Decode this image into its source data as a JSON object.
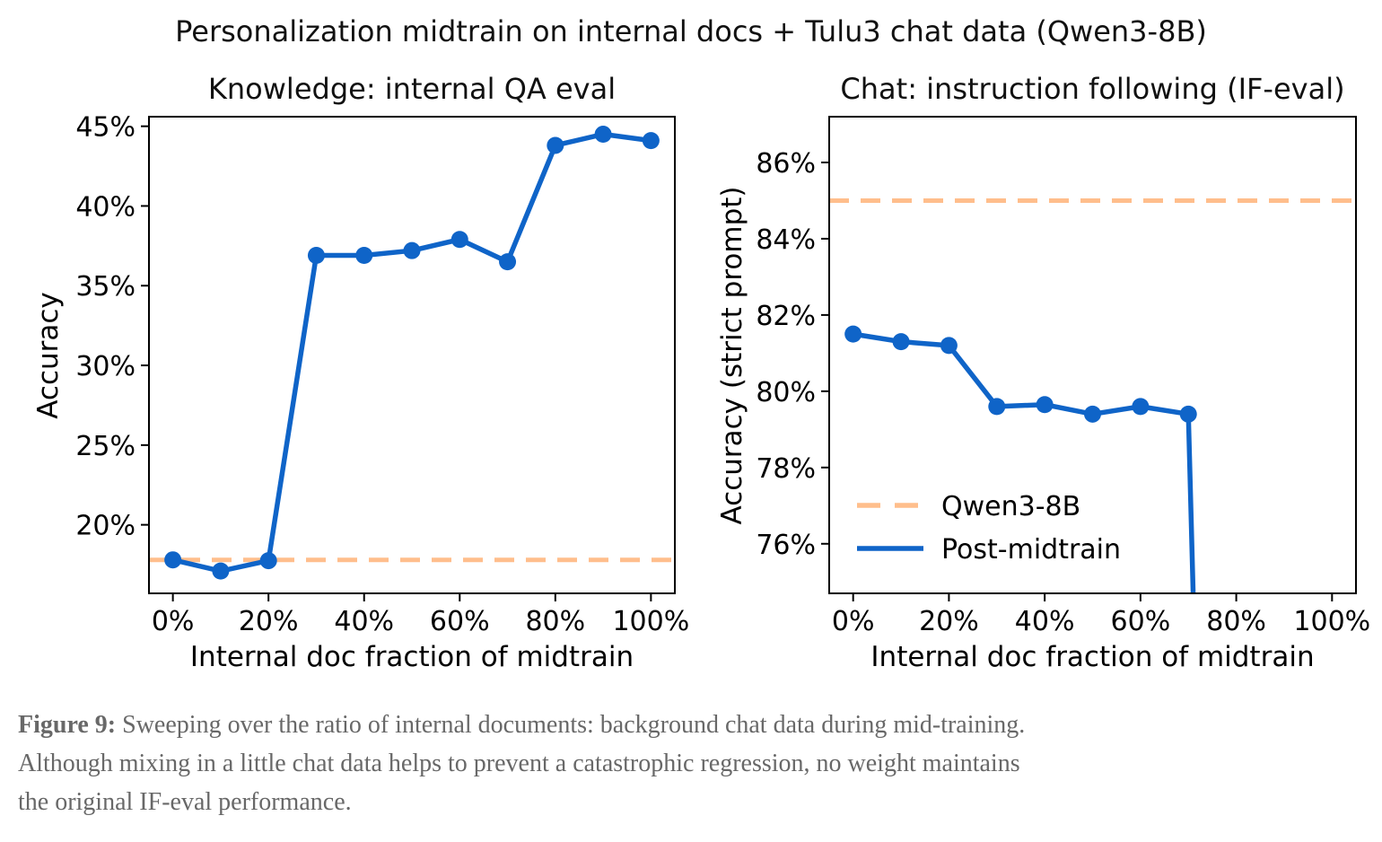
{
  "figure": {
    "suptitle": "Personalization midtrain on internal docs + Tulu3 chat data (Qwen3-8B)",
    "caption": {
      "label": "Figure 9:",
      "line1": "Sweeping over the ratio of internal documents: background chat data during mid-training.",
      "line2": "Although mixing in a little chat data helps to prevent a catastrophic regression, no weight maintains",
      "line3": "the original IF-eval performance."
    }
  },
  "colors": {
    "post_midtrain": "#0f64c8",
    "baseline": "#ffbe8c",
    "axis": "#000000",
    "caption_text": "#686868"
  },
  "chart_data": [
    {
      "type": "line",
      "title": "Knowledge: internal QA eval",
      "xlabel": "Internal doc fraction of midtrain",
      "ylabel": "Accuracy",
      "x": [
        0,
        10,
        20,
        30,
        40,
        50,
        60,
        70,
        80,
        90,
        100
      ],
      "series": [
        {
          "name": "Post-midtrain",
          "values": [
            17.8,
            17.1,
            17.75,
            36.9,
            36.9,
            37.2,
            37.9,
            36.5,
            43.8,
            44.5,
            44.1
          ]
        }
      ],
      "baseline": {
        "name": "Qwen3-8B",
        "value": 17.8
      },
      "xlim": [
        -5,
        105
      ],
      "ylim": [
        15.7,
        45.6
      ],
      "xticks": [
        {
          "v": 0,
          "label": "0%"
        },
        {
          "v": 20,
          "label": "20%"
        },
        {
          "v": 40,
          "label": "40%"
        },
        {
          "v": 60,
          "label": "60%"
        },
        {
          "v": 80,
          "label": "80%"
        },
        {
          "v": 100,
          "label": "100%"
        }
      ],
      "yticks": [
        {
          "v": 20,
          "label": "20%"
        },
        {
          "v": 25,
          "label": "25%"
        },
        {
          "v": 30,
          "label": "30%"
        },
        {
          "v": 35,
          "label": "35%"
        },
        {
          "v": 40,
          "label": "40%"
        },
        {
          "v": 45,
          "label": "45%"
        }
      ],
      "grid": false
    },
    {
      "type": "line",
      "title": "Chat: instruction following (IF-eval)",
      "xlabel": "Internal doc fraction of midtrain",
      "ylabel": "Accuracy (strict prompt)",
      "x": [
        0,
        10,
        20,
        30,
        40,
        50,
        60,
        70,
        80,
        90,
        100
      ],
      "series": [
        {
          "name": "Post-midtrain",
          "values": [
            81.5,
            81.3,
            81.2,
            79.6,
            79.65,
            79.4,
            79.6,
            79.4,
            null,
            null,
            null
          ],
          "offscale_after_index": 7,
          "offscale_note": "line plunges below the visible axis range after the 70% point"
        }
      ],
      "baseline": {
        "name": "Qwen3-8B",
        "value": 85.0
      },
      "xlim": [
        -5,
        105
      ],
      "ylim": [
        74.7,
        87.2
      ],
      "xticks": [
        {
          "v": 0,
          "label": "0%"
        },
        {
          "v": 20,
          "label": "20%"
        },
        {
          "v": 40,
          "label": "40%"
        },
        {
          "v": 60,
          "label": "60%"
        },
        {
          "v": 80,
          "label": "80%"
        },
        {
          "v": 100,
          "label": "100%"
        }
      ],
      "yticks": [
        {
          "v": 76,
          "label": "76%"
        },
        {
          "v": 78,
          "label": "78%"
        },
        {
          "v": 80,
          "label": "80%"
        },
        {
          "v": 82,
          "label": "82%"
        },
        {
          "v": 84,
          "label": "84%"
        },
        {
          "v": 86,
          "label": "86%"
        }
      ],
      "grid": false,
      "legend": {
        "position": "lower left",
        "entries": [
          {
            "label": "Qwen3-8B",
            "style": "dashed",
            "color_key": "baseline"
          },
          {
            "label": "Post-midtrain",
            "style": "solid",
            "color_key": "post_midtrain"
          }
        ]
      }
    }
  ]
}
